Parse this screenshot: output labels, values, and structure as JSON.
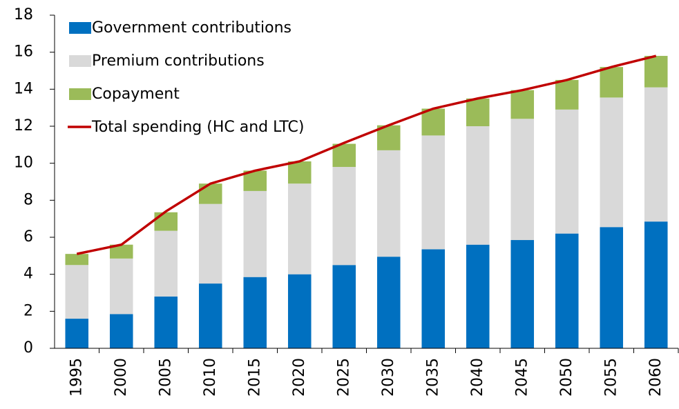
{
  "chart_data": {
    "type": "bar",
    "stacked": true,
    "categories": [
      "1995",
      "2000",
      "2005",
      "2010",
      "2015",
      "2020",
      "2025",
      "2030",
      "2035",
      "2040",
      "2045",
      "2050",
      "2055",
      "2060"
    ],
    "series": [
      {
        "name": "Government contributions",
        "color": "#0070c0",
        "values": [
          1.6,
          1.85,
          2.8,
          3.5,
          3.85,
          4.0,
          4.5,
          4.95,
          5.35,
          5.6,
          5.85,
          6.2,
          6.55,
          6.85
        ]
      },
      {
        "name": "Premium contributions",
        "color": "#d9d9d9",
        "values": [
          2.9,
          3.0,
          3.55,
          4.3,
          4.65,
          4.9,
          5.3,
          5.75,
          6.15,
          6.4,
          6.55,
          6.7,
          7.0,
          7.25
        ]
      },
      {
        "name": "Copayment",
        "color": "#9bbb59",
        "values": [
          0.6,
          0.75,
          1.0,
          1.1,
          1.1,
          1.2,
          1.25,
          1.35,
          1.45,
          1.5,
          1.55,
          1.6,
          1.65,
          1.7
        ]
      },
      {
        "name": "Total spending (HC and LTC)",
        "color": "#c00000",
        "type": "line",
        "values": [
          5.1,
          5.6,
          7.4,
          8.9,
          9.6,
          10.1,
          11.1,
          12.05,
          12.95,
          13.5,
          13.95,
          14.5,
          15.2,
          15.8
        ]
      }
    ],
    "ylim": [
      0,
      18
    ],
    "yticks": [
      0,
      2,
      4,
      6,
      8,
      10,
      12,
      14,
      16,
      18
    ],
    "grid": false,
    "legend": "top-left"
  }
}
